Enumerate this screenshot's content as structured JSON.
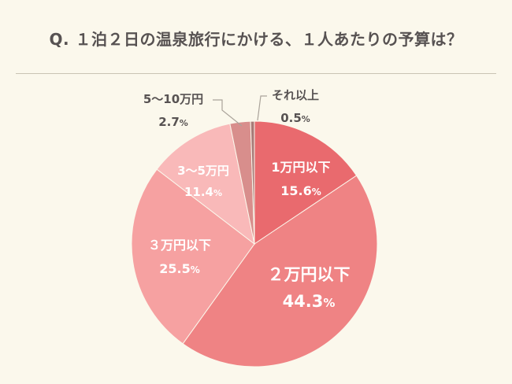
{
  "title": "Q. １泊２日の温泉旅行にかける、１人あたりの予算は？",
  "chart_data": {
    "type": "pie",
    "title": "Q. １泊２日の温泉旅行にかける、１人あたりの予算は？",
    "slices": [
      {
        "label": "1万円以下",
        "value": 15.6,
        "value_label": "15.6",
        "unit": "%",
        "color": "#e96a6e",
        "label_color": "#ffffff",
        "label_pos": "inside"
      },
      {
        "label": "２万円以下",
        "value": 44.3,
        "value_label": "44.3",
        "unit": "%",
        "color": "#ef8384",
        "label_color": "#ffffff",
        "label_pos": "inside"
      },
      {
        "label": "３万円以下",
        "value": 25.5,
        "value_label": "25.5",
        "unit": "%",
        "color": "#f6a1a1",
        "label_color": "#ffffff",
        "label_pos": "inside"
      },
      {
        "label": "3～5万円",
        "value": 11.4,
        "value_label": "11.4",
        "unit": "%",
        "color": "#f9b9b9",
        "label_color": "#ffffff",
        "label_pos": "inside"
      },
      {
        "label": "5～10万円",
        "value": 2.7,
        "value_label": "2.7",
        "unit": "%",
        "color": "#d88e8c",
        "label_color": "#575252",
        "label_pos": "outside"
      },
      {
        "label": "それ以上",
        "value": 0.5,
        "value_label": "0.5",
        "unit": "%",
        "color": "#a87a77",
        "label_color": "#575252",
        "label_pos": "outside"
      }
    ],
    "start": "12 o'clock",
    "direction": "clockwise"
  }
}
